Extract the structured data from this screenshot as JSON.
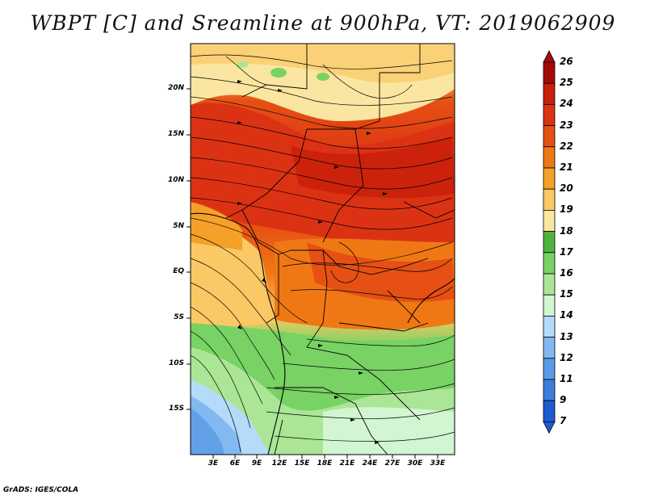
{
  "title": "WBPT [C] and Sreamline at 900hPa, VT: 2019062909",
  "footer": "GrADS: IGES/COLA",
  "map": {
    "lat_labels": [
      "20N",
      "15N",
      "10N",
      "5N",
      "EQ",
      "5S",
      "10S",
      "15S"
    ],
    "lon_labels": [
      "3E",
      "6E",
      "9E",
      "12E",
      "15E",
      "18E",
      "21E",
      "24E",
      "27E",
      "30E",
      "33E"
    ]
  },
  "colorbar": {
    "labels": [
      "26",
      "25",
      "24",
      "23",
      "22",
      "21",
      "20",
      "19",
      "18",
      "17",
      "16",
      "15",
      "14",
      "13",
      "12",
      "11",
      "9",
      "7"
    ],
    "colors": [
      "#a50a0a",
      "#c81e0a",
      "#dc3214",
      "#e65014",
      "#f07814",
      "#f5a028",
      "#fac864",
      "#fae6a0",
      "#50b43c",
      "#78d264",
      "#aae696",
      "#d2f5d2",
      "#b4dcfa",
      "#82b9f0",
      "#5a9be6",
      "#3c7ddc",
      "#1e5ad2"
    ]
  }
}
